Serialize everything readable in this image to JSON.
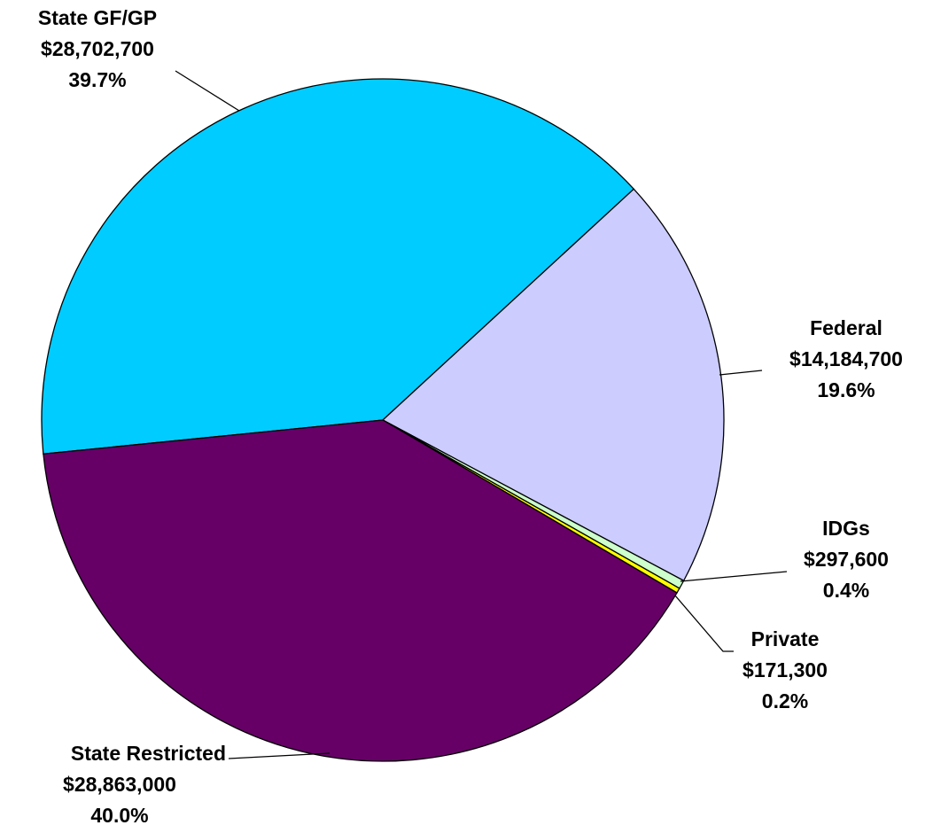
{
  "chart_data": {
    "type": "pie",
    "categories": [
      "State GF/GP",
      "Federal",
      "IDGs",
      "Private",
      "State Restricted"
    ],
    "values": [
      28702700,
      14184700,
      297600,
      171300,
      28863000
    ],
    "value_labels": [
      "$28,702,700",
      "$14,184,700",
      "$297,600",
      "$171,300",
      "$28,863,000"
    ],
    "percent_labels": [
      "39.7%",
      "19.6%",
      "0.4%",
      "0.2%",
      "40.0%"
    ],
    "colors": [
      "#00ccff",
      "#ccccff",
      "#ccffcc",
      "#ffff00",
      "#660066"
    ]
  }
}
